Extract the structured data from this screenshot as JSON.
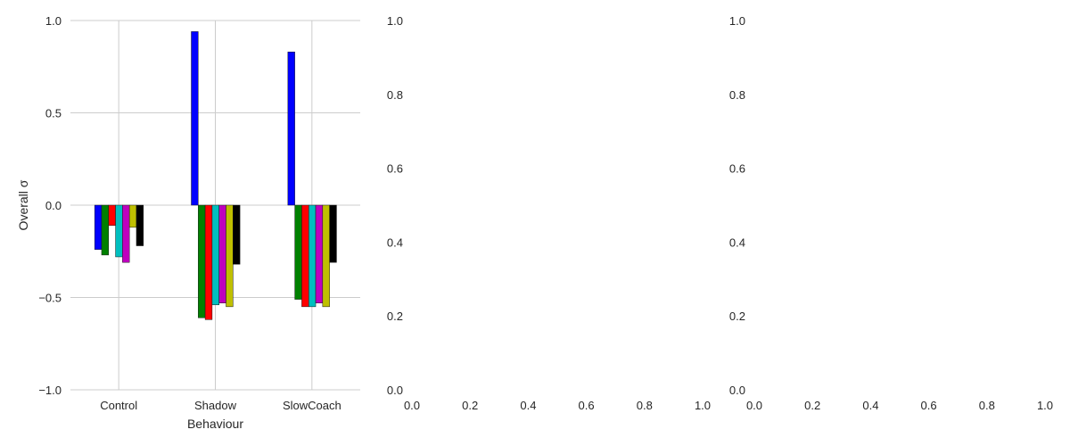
{
  "chart_data": [
    {
      "type": "bar",
      "categories": [
        "Control",
        "Shadow",
        "SlowCoach"
      ],
      "xlabel": "Behaviour",
      "ylabel": "Overall σ",
      "ylim": [
        -1.0,
        1.0
      ],
      "yticks": [
        "1.0",
        "0.5",
        "0.0",
        "−0.5",
        "−1.0"
      ],
      "ytick_values": [
        1.0,
        0.5,
        0.0,
        -0.5,
        -1.0
      ],
      "grid": true,
      "series": [
        {
          "color": "#0000ff",
          "values": [
            -0.24,
            0.94,
            0.83
          ]
        },
        {
          "color": "#008000",
          "values": [
            -0.27,
            -0.61,
            -0.51
          ]
        },
        {
          "color": "#ff0000",
          "values": [
            -0.11,
            -0.62,
            -0.55
          ]
        },
        {
          "color": "#00bfbf",
          "values": [
            -0.28,
            -0.54,
            -0.55
          ]
        },
        {
          "color": "#bf00bf",
          "values": [
            -0.31,
            -0.53,
            -0.53
          ]
        },
        {
          "color": "#bfbf00",
          "values": [
            -0.12,
            -0.55,
            -0.55
          ]
        },
        {
          "color": "#000000",
          "values": [
            -0.22,
            -0.32,
            -0.31
          ]
        }
      ]
    },
    {
      "type": "bar",
      "empty": true,
      "xlim": [
        0.0,
        1.0
      ],
      "ylim": [
        0.0,
        1.0
      ],
      "xticks": [
        "0.0",
        "0.2",
        "0.4",
        "0.6",
        "0.8",
        "1.0"
      ],
      "yticks": [
        "0.0",
        "0.2",
        "0.4",
        "0.6",
        "0.8",
        "1.0"
      ]
    },
    {
      "type": "bar",
      "empty": true,
      "xlim": [
        0.0,
        1.0
      ],
      "ylim": [
        0.0,
        1.0
      ],
      "xticks": [
        "0.0",
        "0.2",
        "0.4",
        "0.6",
        "0.8",
        "1.0"
      ],
      "yticks": [
        "0.0",
        "0.2",
        "0.4",
        "0.6",
        "0.8",
        "1.0"
      ]
    }
  ]
}
